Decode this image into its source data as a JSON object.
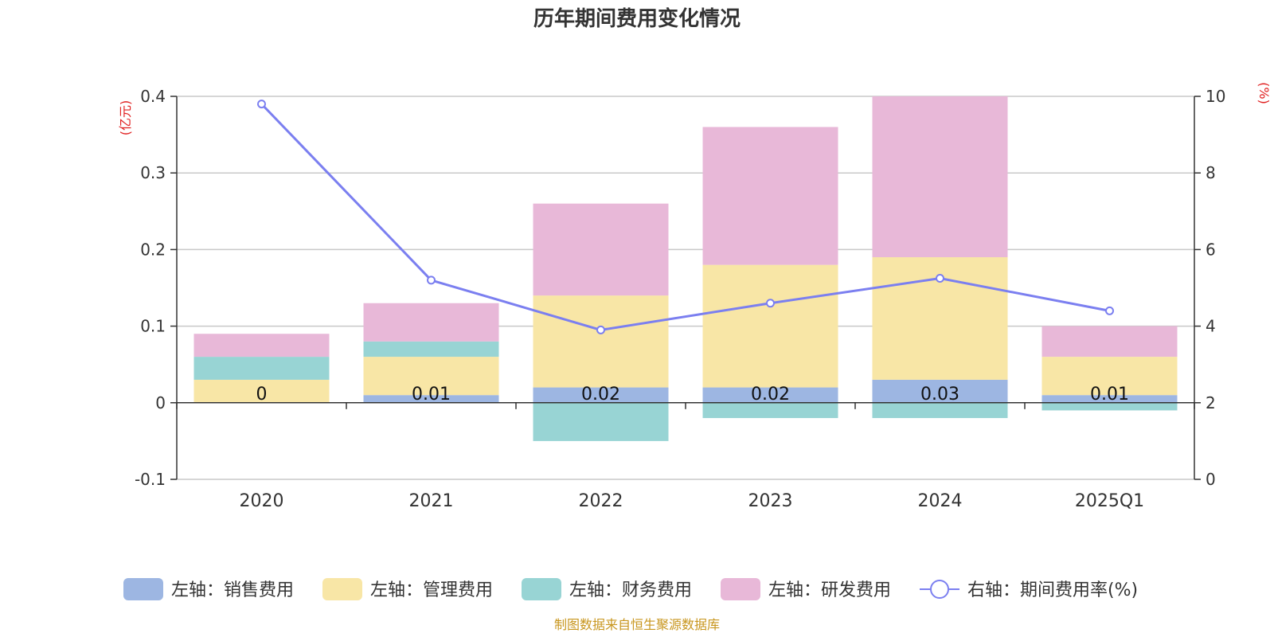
{
  "chart_data": {
    "type": "bar",
    "stacked": true,
    "title": "历年期间费用变化情况",
    "categories": [
      "2020",
      "2021",
      "2022",
      "2023",
      "2024",
      "2025Q1"
    ],
    "left_axis": {
      "unit": "(亿元)",
      "ylim": [
        -0.1,
        0.4
      ],
      "ticks": [
        0.4,
        0.3,
        0.2,
        0.1,
        0,
        -0.1
      ],
      "tick_labels": [
        "0.4",
        "0.3",
        "0.2",
        "0.1",
        "0",
        "-0.1"
      ]
    },
    "right_axis": {
      "unit": "(%)",
      "ylim": [
        0,
        10
      ],
      "ticks": [
        10,
        8,
        6,
        4,
        2,
        0
      ],
      "tick_labels": [
        "10",
        "8",
        "6",
        "4",
        "2",
        "0"
      ]
    },
    "series": [
      {
        "name": "左轴：销售费用",
        "axis": "left",
        "kind": "bar",
        "color": "#9db6e2",
        "values": [
          0,
          0.01,
          0.02,
          0.02,
          0.03,
          0.01
        ],
        "labels": [
          "0",
          "0.01",
          "0.02",
          "0.02",
          "0.03",
          "0.01"
        ]
      },
      {
        "name": "左轴：管理费用",
        "axis": "left",
        "kind": "bar",
        "color": "#f8e6a6",
        "values": [
          0.03,
          0.05,
          0.12,
          0.16,
          0.16,
          0.05
        ]
      },
      {
        "name": "左轴：财务费用",
        "axis": "left",
        "kind": "bar",
        "color": "#98d4d4",
        "values": [
          0.03,
          0.02,
          -0.05,
          -0.02,
          -0.02,
          -0.01
        ]
      },
      {
        "name": "左轴：研发费用",
        "axis": "left",
        "kind": "bar",
        "color": "#e8b8d8",
        "values": [
          0.03,
          0.05,
          0.12,
          0.18,
          0.21,
          0.04
        ]
      },
      {
        "name": "右轴：期间费用率(%)",
        "axis": "right",
        "kind": "line",
        "color": "#7b7ff0",
        "values": [
          9.8,
          5.2,
          3.9,
          4.6,
          5.25,
          4.4
        ]
      }
    ],
    "source": "制图数据来自恒生聚源数据库",
    "source_color": "#c8961e",
    "unit_color": "#e02020"
  }
}
